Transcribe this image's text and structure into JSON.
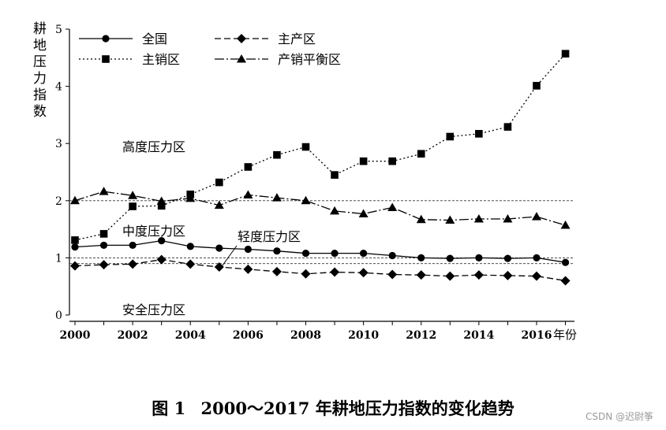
{
  "chart_data": {
    "type": "line",
    "ylabel": "耕地压力指数",
    "xlabel": "年份",
    "x": [
      2000,
      2001,
      2002,
      2003,
      2004,
      2005,
      2006,
      2007,
      2008,
      2009,
      2010,
      2011,
      2012,
      2013,
      2014,
      2015,
      2016,
      2017
    ],
    "xticks": [
      2000,
      2002,
      2004,
      2006,
      2008,
      2010,
      2012,
      2014,
      2016
    ],
    "xtick_labels": [
      "2000",
      "2002",
      "2004",
      "2006",
      "2008",
      "2010",
      "2012",
      "2014",
      "2016"
    ],
    "yticks": [
      0,
      1,
      2,
      3,
      4,
      5
    ],
    "ytick_labels": [
      "0",
      "1",
      "2",
      "3",
      "4",
      "5"
    ],
    "xlim": [
      1999.8,
      2017.4
    ],
    "ylim": [
      0,
      5
    ],
    "reference_lines": [
      2,
      1,
      0.9
    ],
    "legend_position": "top-left",
    "series": [
      {
        "name": "全国",
        "marker": "circle",
        "dash": "solid",
        "values": [
          1.19,
          1.22,
          1.22,
          1.3,
          1.2,
          1.17,
          1.15,
          1.12,
          1.08,
          1.08,
          1.08,
          1.04,
          1.0,
          0.99,
          1.0,
          0.99,
          1.0,
          0.92
        ]
      },
      {
        "name": "主产区",
        "marker": "diamond",
        "dash": "dashed",
        "values": [
          0.86,
          0.88,
          0.89,
          0.97,
          0.89,
          0.84,
          0.8,
          0.76,
          0.72,
          0.75,
          0.74,
          0.71,
          0.7,
          0.68,
          0.7,
          0.69,
          0.68,
          0.6
        ]
      },
      {
        "name": "主销区",
        "marker": "square",
        "dash": "dotted",
        "values": [
          1.31,
          1.42,
          1.9,
          1.91,
          2.11,
          2.32,
          2.59,
          2.8,
          2.94,
          2.45,
          2.69,
          2.69,
          2.82,
          3.12,
          3.17,
          3.29,
          4.01,
          4.57
        ]
      },
      {
        "name": "产销平衡区",
        "marker": "triangle",
        "dash": "dashdot",
        "values": [
          2.0,
          2.16,
          2.09,
          1.99,
          2.04,
          1.92,
          2.1,
          2.05,
          2.0,
          1.82,
          1.77,
          1.88,
          1.67,
          1.66,
          1.68,
          1.68,
          1.72,
          1.57
        ]
      }
    ],
    "annotations": [
      "高度压力区",
      "中度压力区",
      "轻度压力区",
      "安全压力区"
    ]
  },
  "caption": {
    "label": "图 1",
    "text": "2000～2017 年耕地压力指数的变化趋势"
  },
  "watermark": "CSDN @迟尉筝"
}
